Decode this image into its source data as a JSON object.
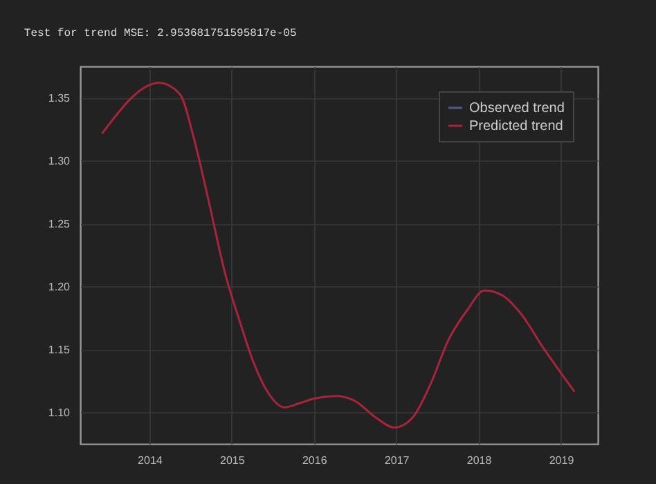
{
  "chart_data": {
    "type": "line",
    "title": "Test for trend MSE: 2.953681751595817e-05",
    "x": [
      2013.43,
      2014.12,
      2014.37,
      2014.54,
      2014.71,
      2014.93,
      2015.1,
      2015.27,
      2015.43,
      2015.64,
      2015.81,
      2016.0,
      2016.27,
      2016.5,
      2016.75,
      2016.98,
      2017.2,
      2017.42,
      2017.63,
      2017.87,
      2018.07,
      2018.29,
      2018.52,
      2018.78,
      2019.16
    ],
    "series": [
      {
        "name": "Observed trend",
        "color": "#4c5a8c",
        "values": [
          null,
          null,
          null,
          null,
          null,
          null,
          null,
          null,
          null,
          null,
          null,
          null,
          null,
          null,
          null,
          null,
          null,
          null,
          null,
          null,
          null,
          null,
          null,
          null,
          null
        ]
      },
      {
        "name": "Predicted trend",
        "color": "#a8243a",
        "values": [
          1.322,
          1.362,
          1.353,
          1.318,
          1.271,
          1.208,
          1.172,
          1.139,
          1.117,
          1.104,
          1.107,
          1.111,
          1.113,
          1.109,
          1.096,
          1.088,
          1.096,
          1.123,
          1.157,
          1.182,
          1.197,
          1.193,
          1.178,
          1.152,
          1.117
        ]
      }
    ],
    "xlim": [
      2013.16,
      2019.45
    ],
    "ylim": [
      1.075,
      1.375
    ],
    "xticks": [
      2014,
      2015,
      2016,
      2017,
      2018,
      2019
    ],
    "yticks": [
      {
        "value": 1.1,
        "label": "1.10"
      },
      1.15,
      {
        "value": 1.2,
        "label": "1.20"
      },
      1.25,
      {
        "value": 1.3,
        "label": "1.30"
      },
      1.35
    ],
    "grid": true,
    "legend": "top right"
  }
}
